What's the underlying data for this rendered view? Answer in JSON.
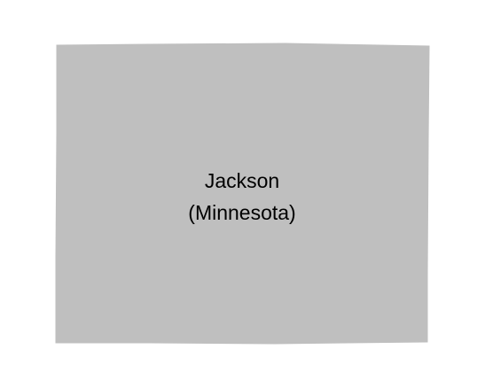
{
  "map": {
    "region": {
      "name": "Jackson",
      "state": "(Minnesota)",
      "fill_color": "#bfbfbf"
    },
    "background_color": "#ffffff"
  }
}
